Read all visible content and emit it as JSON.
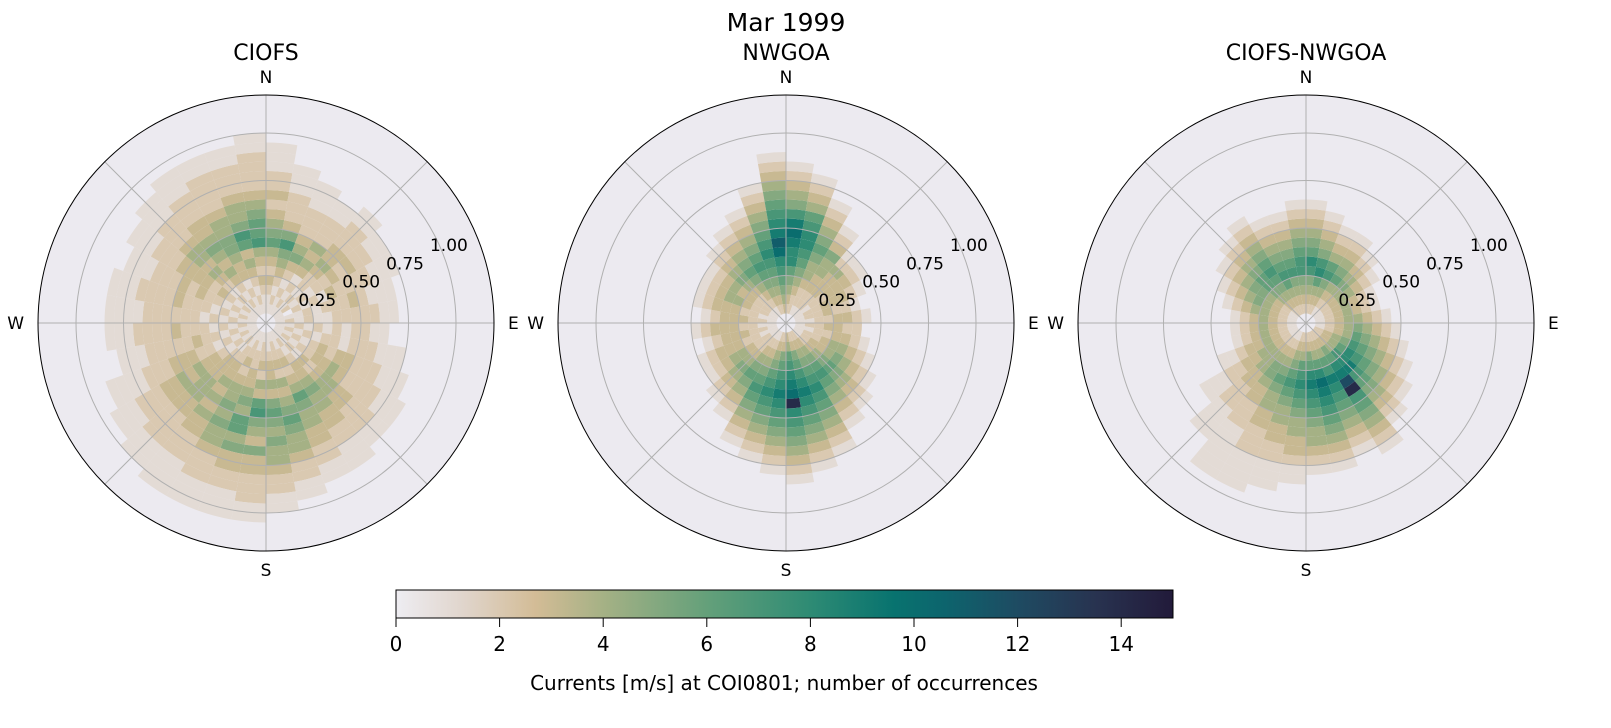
{
  "chart_data": {
    "type": "heatmap",
    "subtype": "polar-2d-histogram",
    "title": "Mar 1999",
    "direction_labels": [
      "N",
      "E",
      "S",
      "W"
    ],
    "r_ticks": [
      "0.25",
      "0.50",
      "0.75",
      "1.00"
    ],
    "r_tick_values": [
      0.25,
      0.5,
      0.75,
      1.0
    ],
    "rlim": [
      0,
      1.2
    ],
    "radial_bin_width": 0.05,
    "angular_bin_deg": 10,
    "angle_origin": "N, clockwise",
    "grid": true,
    "colorbar": {
      "label": "Currents [m/s] at COI0801; number of occurrences",
      "ticks": [
        "0",
        "2",
        "4",
        "6",
        "8",
        "10",
        "12",
        "14"
      ],
      "tick_values": [
        0,
        2,
        4,
        6,
        8,
        10,
        12,
        14
      ],
      "range": [
        0,
        15
      ],
      "placement": "bottom"
    },
    "colormap_stops": [
      [
        0,
        "#eeedf2"
      ],
      [
        1.3,
        "#e0d5cc"
      ],
      [
        2.7,
        "#d3bc96"
      ],
      [
        4,
        "#a5b185"
      ],
      [
        6,
        "#64a07a"
      ],
      [
        8,
        "#2e8b74"
      ],
      [
        9.6,
        "#08736f"
      ],
      [
        10.6,
        "#0d646d"
      ],
      [
        12,
        "#1e4b62"
      ],
      [
        13.5,
        "#283350"
      ],
      [
        15,
        "#221a3a"
      ]
    ],
    "panels": [
      {
        "title": "CIOFS",
        "counts_hex_by_direction": [
          "011232346543232211100000",
          "012123457532221110000000",
          "011212354322211100000000",
          "012121343422211000000000",
          "011212234332221100000000",
          "012121223232211000000000",
          "010212132222111000000000",
          "011121222321110000000000",
          "012121122222110000000000",
          "011212121221100000000000",
          "012121221222111000000000",
          "011212323322211100000000",
          "012122334322221110000000",
          "011213234433222110000000",
          "012123345443322111000000",
          "011232346544332211000000",
          "012232434565443221100000",
          "011233435654544322110000",
          "012232436754353322211000",
          "011223345466453322111000",
          "012232344545443222111000",
          "011223343434332221111000",
          "012123334443322221110000",
          "011212334343322211100000",
          "012121223332221111000000",
          "011212232222211100000000",
          "012121222322221110000000",
          "011212122222211110000000",
          "012121222322221110000000",
          "011212232322211100000000",
          "012123233332221110000000",
          "011212343443222111000000",
          "012123434543322211100000",
          "011213345544322221100000",
          "012123436754432221100000",
          "011232347665432222110000"
        ]
      },
      {
        "title": "NWGOA",
        "counts_hex_by_direction": [
          "023456889A97543210000000",
          "022345678876432100000000",
          "012234456543210000000000",
          "012233445321000000000000",
          "012233342100000000000000",
          "011223332100000000000000",
          "012233321000000000000000",
          "012232210000000000000000",
          "011223321000000000000000",
          "012233220000000000000000",
          "011223321000000000000000",
          "012234432100000000000000",
          "012334543210000000000000",
          "012345654321000000000000",
          "023456765432100000000000",
          "023456787654321000000000",
          "023567898765432100000000",
          "0346789AE876543210000000",
          "023567898765432100000000",
          "023456787654321000000000",
          "012345676543210000000000",
          "012345654321000000000000",
          "012234543210000000000000",
          "012234432100000000000000",
          "011223332100000000000000",
          "012233321000000000000000",
          "011223332100000000000000",
          "012233321000000000000000",
          "011223332100000000000000",
          "012234432100000000000000",
          "012233432100000000000000",
          "012234543210000000000000",
          "012345654321000000000000",
          "023456765432100000000000",
          "023456787654321000000000",
          "0345678AB987654321000000"
        ]
      },
      {
        "title": "CIOFS-NWGOA",
        "counts_hex_by_direction": [
          "023457865432100000000000",
          "023468754321000000000000",
          "023457643210000000000000",
          "012346543210000000000000",
          "012345432100000000000000",
          "012344321000000000000000",
          "012343210000000000000000",
          "012343210000000000000000",
          "012344321000000000000000",
          "012345432100000000000000",
          "012346543210000000000000",
          "023457654321000000000000",
          "023468765432100000000000",
          "023478976543210000000000",
          "0235689CE765432100000000",
          "023467987654321000000000",
          "023468A98765432100000000",
          "023568987654432100000000",
          "023467876544332110000000",
          "023456765443322111000000",
          "012345654433222111100000",
          "012345543322211111100000",
          "012344433222111100000000",
          "012344332211100000000000",
          "012343321100000000000000",
          "012343210000000000000000",
          "012343210000000000000000",
          "012343210000000000000000",
          "012344321000000000000000",
          "012345432100000000000000",
          "012345543210000000000000",
          "023456654321000000000000",
          "023456765432100000000000",
          "023467654321000000000000",
          "023457654321000000000000",
          "023457765432100000000000"
        ]
      }
    ]
  }
}
